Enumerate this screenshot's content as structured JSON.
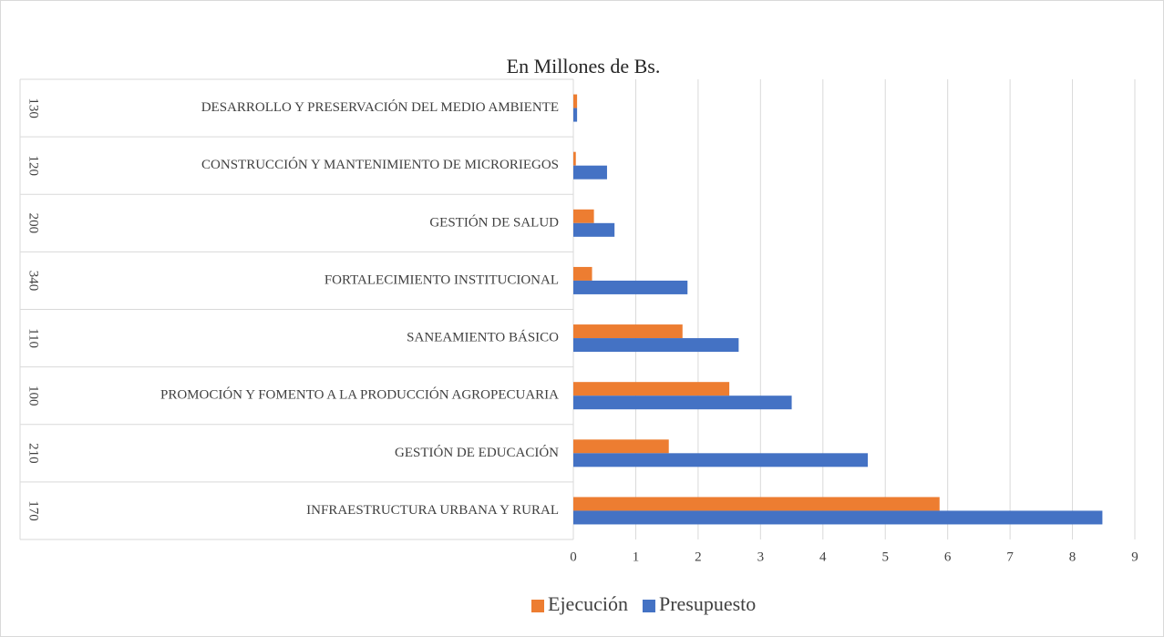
{
  "chart_data": {
    "type": "bar",
    "orientation": "horizontal",
    "title": "En Millones de Bs.",
    "codes": [
      "170",
      "210",
      "100",
      "110",
      "340",
      "200",
      "120",
      "130"
    ],
    "categories": [
      "INFRAESTRUCTURA URBANA Y RURAL",
      "GESTIÓN DE EDUCACIÓN",
      "PROMOCIÓN Y FOMENTO A LA PRODUCCIÓN AGROPECUARIA",
      "SANEAMIENTO BÁSICO",
      "FORTALECIMIENTO INSTITUCIONAL",
      "GESTIÓN DE SALUD",
      "CONSTRUCCIÓN Y MANTENIMIENTO DE MICRORIEGOS",
      "DESARROLLO Y PRESERVACIÓN DEL MEDIO AMBIENTE"
    ],
    "series": [
      {
        "name": "Ejecución",
        "color": "#ed7d31",
        "values": [
          5.87,
          1.53,
          2.5,
          1.75,
          0.3,
          0.33,
          0.04,
          0.06
        ]
      },
      {
        "name": "Presupuesto",
        "color": "#4472c4",
        "values": [
          8.48,
          4.72,
          3.5,
          2.65,
          1.83,
          0.66,
          0.54,
          0.06
        ]
      }
    ],
    "xlim": [
      0,
      9
    ],
    "xticks": [
      0,
      1,
      2,
      3,
      4,
      5,
      6,
      7,
      8,
      9
    ],
    "grid": true,
    "legend": "bottom"
  }
}
